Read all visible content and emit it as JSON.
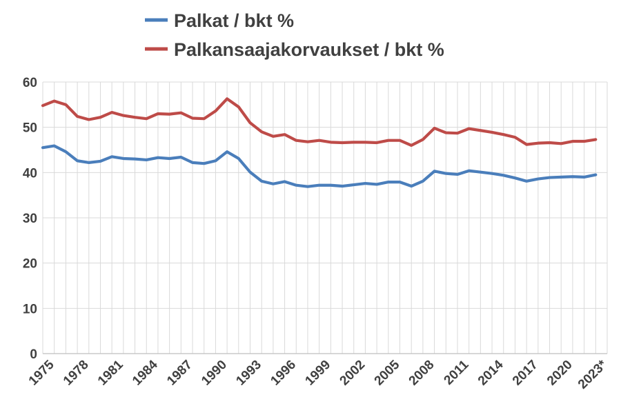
{
  "chart_data": {
    "type": "line",
    "title": "",
    "xlabel": "",
    "ylabel": "",
    "legend_position": "top",
    "grid": true,
    "ylim": [
      0,
      60
    ],
    "yticks": [
      0,
      10,
      20,
      30,
      40,
      50,
      60
    ],
    "x": [
      "1975",
      "1976",
      "1977",
      "1978",
      "1979",
      "1980",
      "1981",
      "1982",
      "1983",
      "1984",
      "1985",
      "1986",
      "1987",
      "1988",
      "1989",
      "1990",
      "1991",
      "1992",
      "1993",
      "1994",
      "1995",
      "1996",
      "1997",
      "1998",
      "1999",
      "2000",
      "2001",
      "2002",
      "2003",
      "2004",
      "2005",
      "2006",
      "2007",
      "2008",
      "2009",
      "2010",
      "2011",
      "2012",
      "2013",
      "2014",
      "2015",
      "2016",
      "2017",
      "2018",
      "2019",
      "2020",
      "2021",
      "2022",
      "2023*"
    ],
    "xtick_labels": [
      "1975",
      "1978",
      "1981",
      "1984",
      "1987",
      "1990",
      "1993",
      "1996",
      "1999",
      "2002",
      "2005",
      "2008",
      "2011",
      "2014",
      "2017",
      "2020",
      "2023*"
    ],
    "series": [
      {
        "name": "Palkat / bkt %",
        "color": "#4a7ebb",
        "values": [
          45.5,
          45.9,
          44.6,
          42.6,
          42.2,
          42.5,
          43.5,
          43.1,
          43.0,
          42.8,
          43.3,
          43.1,
          43.4,
          42.2,
          42.0,
          42.6,
          44.6,
          43.1,
          40.1,
          38.1,
          37.5,
          38.0,
          37.2,
          36.9,
          37.2,
          37.2,
          37.0,
          37.3,
          37.6,
          37.4,
          37.9,
          37.9,
          37.0,
          38.1,
          40.3,
          39.8,
          39.6,
          40.4,
          40.1,
          39.8,
          39.4,
          38.8,
          38.1,
          38.6,
          38.9,
          39.0,
          39.1,
          39.0,
          39.5
        ]
      },
      {
        "name": "Palkansaajakorvaukset / bkt %",
        "color": "#be4b48",
        "values": [
          54.8,
          55.8,
          55.0,
          52.4,
          51.7,
          52.2,
          53.3,
          52.6,
          52.2,
          51.9,
          53.0,
          52.9,
          53.2,
          52.0,
          51.9,
          53.6,
          56.3,
          54.5,
          51.0,
          49.0,
          48.0,
          48.4,
          47.1,
          46.8,
          47.1,
          46.7,
          46.6,
          46.7,
          46.7,
          46.6,
          47.1,
          47.1,
          46.0,
          47.3,
          49.8,
          48.8,
          48.7,
          49.7,
          49.3,
          48.9,
          48.4,
          47.8,
          46.2,
          46.5,
          46.6,
          46.4,
          46.9,
          46.9,
          47.3
        ]
      }
    ]
  }
}
